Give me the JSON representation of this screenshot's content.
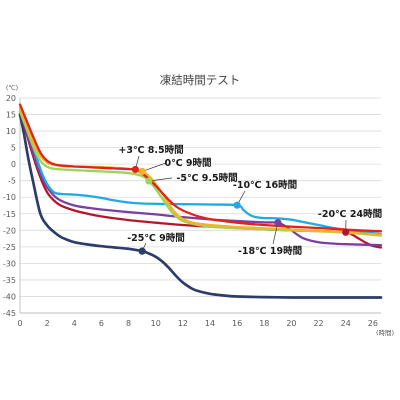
{
  "chart_data": {
    "type": "line",
    "title": "凍結時間テスト",
    "ylabel": "(℃)",
    "xlabel": "(時間)",
    "xlim": [
      0,
      26.6
    ],
    "ylim": [
      -45,
      20
    ],
    "xticks": [
      0,
      2,
      4,
      6,
      8,
      10,
      12,
      14,
      16,
      18,
      20,
      22,
      24,
      26
    ],
    "yticks": [
      20,
      15,
      10,
      5,
      0,
      -5,
      -10,
      -15,
      -20,
      -25,
      -30,
      -35,
      -40,
      -45
    ],
    "grid": true,
    "series": [
      {
        "color": "#e2231a",
        "points": [
          [
            0,
            18
          ],
          [
            0.5,
            13
          ],
          [
            1,
            8
          ],
          [
            1.5,
            3.5
          ],
          [
            2,
            1
          ],
          [
            2.5,
            0
          ],
          [
            3,
            -0.4
          ],
          [
            4,
            -0.7
          ],
          [
            5,
            -0.9
          ],
          [
            6,
            -1.1
          ],
          [
            7,
            -1.3
          ],
          [
            8,
            -1.5
          ],
          [
            8.5,
            -1.6
          ],
          [
            9,
            -2.8
          ],
          [
            9.5,
            -4.5
          ],
          [
            10,
            -6.5
          ],
          [
            10.5,
            -8.8
          ],
          [
            11,
            -11
          ],
          [
            11.5,
            -12.8
          ],
          [
            12,
            -14
          ],
          [
            13,
            -15.6
          ],
          [
            14,
            -16.6
          ],
          [
            15,
            -17.2
          ],
          [
            16,
            -17.7
          ],
          [
            18,
            -18.4
          ],
          [
            20,
            -18.9
          ],
          [
            22,
            -19.3
          ],
          [
            24,
            -19.8
          ],
          [
            26.6,
            -20.3
          ]
        ],
        "marker": {
          "x": 8.5,
          "y": -1.6,
          "label": "+3℃ 8.5時間"
        }
      },
      {
        "color": "#f5b324",
        "points": [
          [
            0,
            17
          ],
          [
            0.5,
            12
          ],
          [
            1,
            6.5
          ],
          [
            1.5,
            2.5
          ],
          [
            2,
            0.5
          ],
          [
            2.5,
            -0.2
          ],
          [
            3,
            -0.5
          ],
          [
            4,
            -0.7
          ],
          [
            5,
            -0.8
          ],
          [
            6,
            -0.9
          ],
          [
            7,
            -1.1
          ],
          [
            8,
            -1.4
          ],
          [
            9,
            -2.2
          ],
          [
            9.5,
            -3.6
          ],
          [
            10,
            -6
          ],
          [
            10.5,
            -9
          ],
          [
            11,
            -12.3
          ],
          [
            11.5,
            -15
          ],
          [
            12,
            -16.6
          ],
          [
            12.5,
            -17.4
          ],
          [
            13,
            -17.9
          ],
          [
            14,
            -18.4
          ],
          [
            16,
            -19
          ],
          [
            18,
            -19.4
          ],
          [
            20,
            -19.8
          ],
          [
            22,
            -20.2
          ],
          [
            24,
            -20.6
          ],
          [
            26.6,
            -21.4
          ]
        ],
        "marker": {
          "x": 9,
          "y": -2.2,
          "label": "0℃ 9時間"
        }
      },
      {
        "color": "#9fd35a",
        "points": [
          [
            0,
            16
          ],
          [
            0.5,
            10.5
          ],
          [
            1,
            5
          ],
          [
            1.5,
            1
          ],
          [
            2,
            -0.8
          ],
          [
            2.5,
            -1.4
          ],
          [
            3,
            -1.6
          ],
          [
            4,
            -1.8
          ],
          [
            5,
            -2
          ],
          [
            6,
            -2.2
          ],
          [
            7,
            -2.4
          ],
          [
            8,
            -2.7
          ],
          [
            9,
            -3.6
          ],
          [
            9.5,
            -5.1
          ],
          [
            10,
            -7.5
          ],
          [
            10.5,
            -10.5
          ],
          [
            11,
            -13.5
          ],
          [
            11.5,
            -15.8
          ],
          [
            12,
            -17.2
          ],
          [
            13,
            -18.3
          ],
          [
            14,
            -18.9
          ],
          [
            16,
            -19.4
          ],
          [
            18,
            -19.7
          ],
          [
            20,
            -20
          ],
          [
            22,
            -20.3
          ],
          [
            24,
            -20.7
          ],
          [
            26.6,
            -21.6
          ]
        ],
        "marker": {
          "x": 9.5,
          "y": -5.1,
          "label": "-5℃ 9.5時間"
        }
      },
      {
        "color": "#21a9e1",
        "points": [
          [
            0,
            17
          ],
          [
            0.5,
            12
          ],
          [
            1,
            5
          ],
          [
            1.5,
            -1.5
          ],
          [
            2,
            -6
          ],
          [
            2.5,
            -8.5
          ],
          [
            3,
            -9
          ],
          [
            4,
            -9.2
          ],
          [
            5,
            -9.6
          ],
          [
            6,
            -10.2
          ],
          [
            7,
            -11
          ],
          [
            8,
            -11.6
          ],
          [
            9,
            -11.9
          ],
          [
            10,
            -12
          ],
          [
            12,
            -12.1
          ],
          [
            14,
            -12.2
          ],
          [
            16,
            -12.4
          ],
          [
            16.5,
            -14
          ],
          [
            17,
            -15.5
          ],
          [
            17.5,
            -16.1
          ],
          [
            18,
            -16.3
          ],
          [
            19,
            -16.4
          ],
          [
            20,
            -16.8
          ],
          [
            21,
            -17.6
          ],
          [
            22,
            -18.4
          ],
          [
            23,
            -19.2
          ],
          [
            24,
            -19.8
          ],
          [
            25,
            -20.4
          ],
          [
            26.6,
            -21.2
          ]
        ],
        "marker": {
          "x": 16,
          "y": -12.4,
          "label": "-10℃ 16時間"
        }
      },
      {
        "color": "#7b3fa0",
        "points": [
          [
            0,
            16
          ],
          [
            0.5,
            9.5
          ],
          [
            1,
            3
          ],
          [
            1.5,
            -3
          ],
          [
            2,
            -7
          ],
          [
            2.5,
            -9.5
          ],
          [
            3,
            -11
          ],
          [
            4,
            -12.5
          ],
          [
            5,
            -13.2
          ],
          [
            6,
            -13.7
          ],
          [
            8,
            -14.5
          ],
          [
            10,
            -15.2
          ],
          [
            12,
            -16
          ],
          [
            14,
            -16.7
          ],
          [
            16,
            -17.2
          ],
          [
            18,
            -17.6
          ],
          [
            19,
            -17.7
          ],
          [
            19.5,
            -18.6
          ],
          [
            20,
            -20
          ],
          [
            20.5,
            -21.5
          ],
          [
            21,
            -22.6
          ],
          [
            22,
            -23.6
          ],
          [
            23,
            -24
          ],
          [
            24,
            -24.2
          ],
          [
            26.6,
            -24.5
          ]
        ],
        "marker": {
          "x": 19,
          "y": -17.7,
          "label": "-18℃ 19時間"
        }
      },
      {
        "color": "#b5152b",
        "points": [
          [
            0,
            16
          ],
          [
            0.5,
            9
          ],
          [
            1,
            2
          ],
          [
            1.5,
            -4
          ],
          [
            2,
            -8.5
          ],
          [
            2.5,
            -11
          ],
          [
            3,
            -12.5
          ],
          [
            4,
            -14
          ],
          [
            5,
            -15
          ],
          [
            6,
            -15.8
          ],
          [
            8,
            -16.9
          ],
          [
            10,
            -17.7
          ],
          [
            12,
            -18.4
          ],
          [
            14,
            -18.9
          ],
          [
            16,
            -19.3
          ],
          [
            18,
            -19.7
          ],
          [
            20,
            -20
          ],
          [
            22,
            -20.2
          ],
          [
            24,
            -20.6
          ],
          [
            24.5,
            -21.4
          ],
          [
            25,
            -22.6
          ],
          [
            25.5,
            -23.8
          ],
          [
            26,
            -24.7
          ],
          [
            26.6,
            -25.2
          ]
        ],
        "marker": {
          "x": 24,
          "y": -20.6,
          "label": "-20℃ 24時間"
        }
      },
      {
        "color": "#2d3d6b",
        "points": [
          [
            0,
            15
          ],
          [
            0.3,
            9
          ],
          [
            0.6,
            2
          ],
          [
            1,
            -6
          ],
          [
            1.5,
            -15
          ],
          [
            2,
            -18.5
          ],
          [
            2.5,
            -20.5
          ],
          [
            3,
            -22
          ],
          [
            3.5,
            -22.9
          ],
          [
            4,
            -23.6
          ],
          [
            5,
            -24.3
          ],
          [
            6,
            -24.8
          ],
          [
            7,
            -25.2
          ],
          [
            8,
            -25.6
          ],
          [
            9,
            -26.3
          ],
          [
            9.5,
            -27
          ],
          [
            10,
            -28
          ],
          [
            10.5,
            -29.5
          ],
          [
            11,
            -31.5
          ],
          [
            11.5,
            -33.8
          ],
          [
            12,
            -35.8
          ],
          [
            12.5,
            -37.2
          ],
          [
            13,
            -38.2
          ],
          [
            14,
            -39.2
          ],
          [
            15,
            -39.7
          ],
          [
            16,
            -40
          ],
          [
            18,
            -40.2
          ],
          [
            20,
            -40.3
          ],
          [
            22,
            -40.3
          ],
          [
            24,
            -40.3
          ],
          [
            26.6,
            -40.3
          ]
        ],
        "marker": {
          "x": 9,
          "y": -26.3,
          "label": "-25℃ 9時間"
        }
      }
    ]
  }
}
